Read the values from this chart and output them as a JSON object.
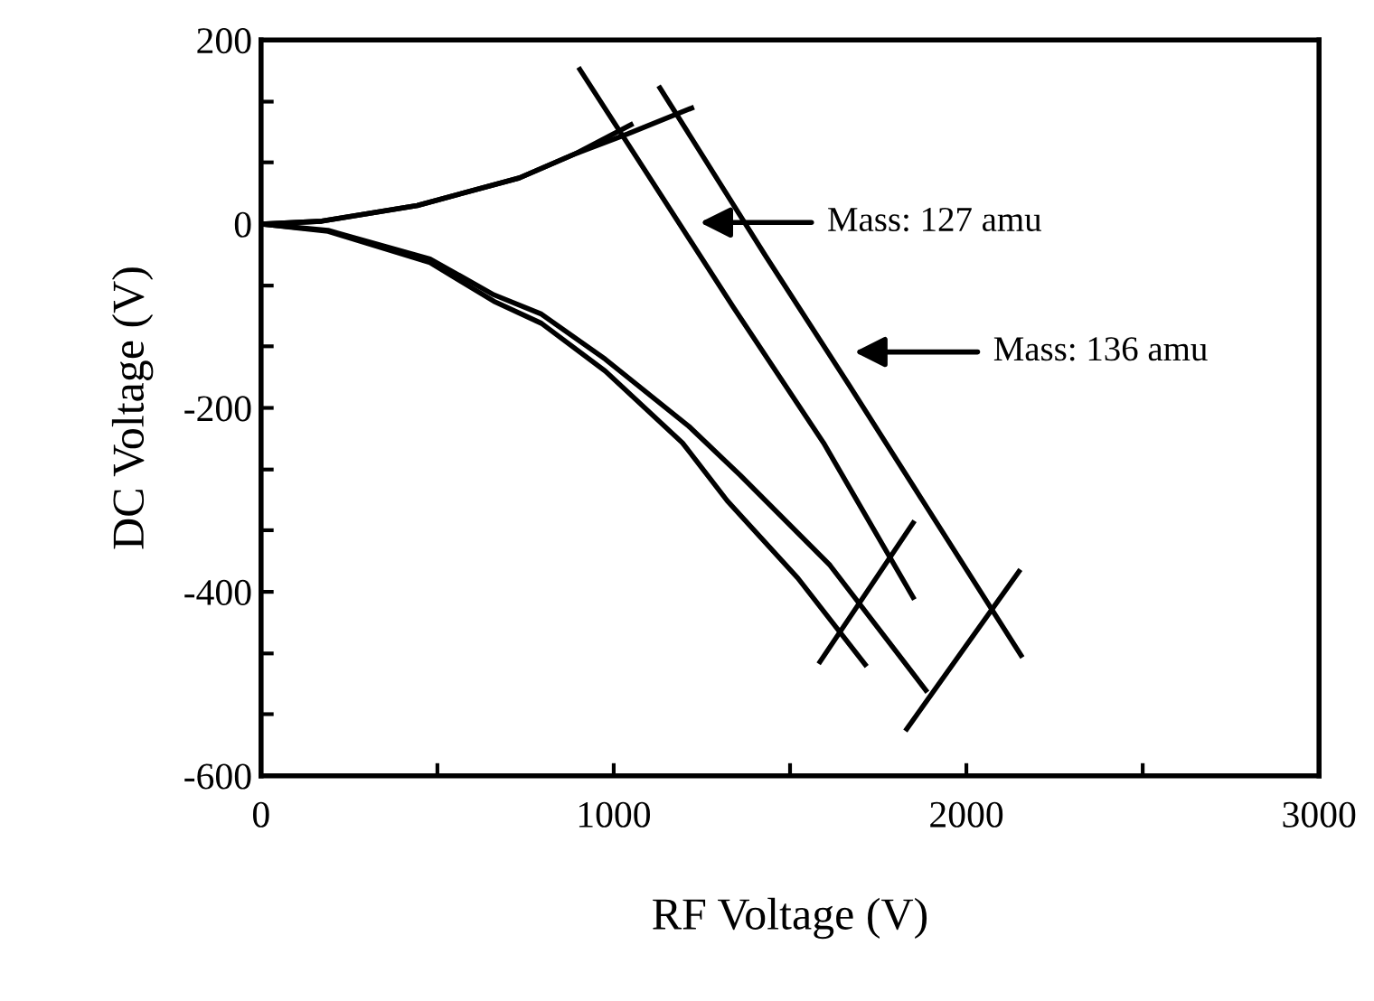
{
  "chart_data": {
    "type": "line",
    "xlabel": "RF Voltage (V)",
    "ylabel": "DC Voltage (V)",
    "xlim": [
      0,
      3000
    ],
    "ylim": [
      -600,
      200
    ],
    "xticks": [
      0,
      {
        "value": 500,
        "label": null
      },
      1000,
      {
        "value": 1500,
        "label": null
      },
      2000,
      {
        "value": 2500,
        "label": null
      },
      3000
    ],
    "yticks": [
      -600,
      {
        "value": -533,
        "label": null
      },
      {
        "value": -467,
        "label": null
      },
      -400,
      {
        "value": -333,
        "label": null
      },
      {
        "value": -267,
        "label": null
      },
      -200,
      {
        "value": -133,
        "label": null
      },
      {
        "value": -67,
        "label": null
      },
      0,
      {
        "value": 67,
        "label": null
      },
      {
        "value": 133,
        "label": null
      },
      200
    ],
    "grid": false,
    "legend": false,
    "marker": "none",
    "line_style": "solid",
    "series": [
      {
        "color": "#000000",
        "x": [
          0,
          172,
          443,
          732,
          895,
          1049
        ],
        "values": [
          0,
          3,
          20,
          50,
          77,
          108
        ]
      },
      {
        "color": "#000000",
        "x": [
          0,
          172,
          443,
          732,
          895,
          1040,
          1221
        ],
        "values": [
          0,
          3,
          20,
          50,
          77,
          98,
          126
        ]
      },
      {
        "color": "#000000",
        "x": [
          0,
          190,
          479,
          660,
          795,
          976,
          1213,
          1358,
          1613,
          1885
        ],
        "values": [
          0,
          -7,
          -38,
          -77,
          -98,
          -147,
          -220,
          -273,
          -371,
          -507
        ]
      },
      {
        "color": "#000000",
        "x": [
          0,
          190,
          479,
          660,
          795,
          976,
          1195,
          1322,
          1522,
          1713
        ],
        "values": [
          0,
          -8,
          -42,
          -84,
          -108,
          -160,
          -238,
          -301,
          -385,
          -479
        ]
      },
      {
        "color": "#000000",
        "x": [
          904,
          1340,
          1595,
          1849
        ],
        "values": [
          168,
          -91,
          -238,
          -406
        ]
      },
      {
        "color": "#000000",
        "x": [
          1131,
          1431,
          1667,
          2155
        ],
        "values": [
          148,
          -35,
          -175,
          -469
        ]
      },
      {
        "color": "#000000",
        "x": [
          1585,
          1849
        ],
        "values": [
          -476,
          -325
        ]
      },
      {
        "color": "#000000",
        "x": [
          1831,
          2149
        ],
        "values": [
          -549,
          -378
        ]
      }
    ],
    "annotations": [
      "Mass: 127 amu",
      "Mass: 136 amu"
    ]
  }
}
